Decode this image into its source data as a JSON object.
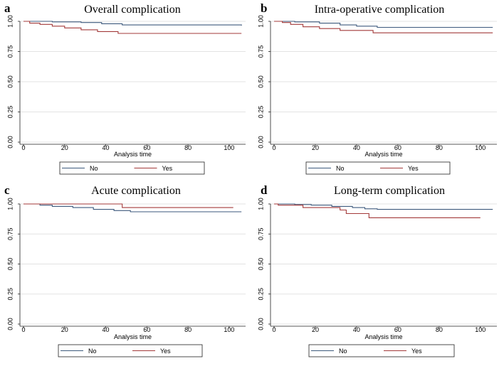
{
  "chart_data": [
    {
      "type": "line",
      "panel_label": "a",
      "title": "Overall complication",
      "xlabel": "Analysis time",
      "ylabel": "",
      "xlim": [
        0,
        108
      ],
      "ylim": [
        0,
        1
      ],
      "xticks": [
        0,
        20,
        40,
        60,
        80,
        100
      ],
      "yticks": [
        0,
        0.25,
        0.5,
        0.75,
        1
      ],
      "ytick_labels": [
        "0.00",
        "0.25",
        "0.50",
        "0.75",
        "1.00"
      ],
      "grid": true,
      "legend_position": "bottom",
      "series": [
        {
          "name": "No",
          "color": "#3e5a7d",
          "x": [
            0,
            14,
            28,
            38,
            48,
            106
          ],
          "y": [
            1.0,
            0.995,
            0.99,
            0.98,
            0.97,
            0.965
          ]
        },
        {
          "name": "Yes",
          "color": "#a33a3a",
          "x": [
            0,
            3,
            8,
            14,
            20,
            28,
            36,
            46,
            106
          ],
          "y": [
            1.0,
            0.985,
            0.975,
            0.96,
            0.945,
            0.93,
            0.915,
            0.9,
            0.9
          ]
        }
      ]
    },
    {
      "type": "line",
      "panel_label": "b",
      "title": "Intra-operative complication",
      "xlabel": "Analysis time",
      "ylabel": "",
      "xlim": [
        0,
        108
      ],
      "ylim": [
        0,
        1
      ],
      "xticks": [
        0,
        20,
        40,
        60,
        80,
        100
      ],
      "yticks": [
        0,
        0.25,
        0.5,
        0.75,
        1
      ],
      "ytick_labels": [
        "0.00",
        "0.25",
        "0.50",
        "0.75",
        "1.00"
      ],
      "grid": true,
      "legend_position": "bottom",
      "series": [
        {
          "name": "No",
          "color": "#3e5a7d",
          "x": [
            0,
            10,
            22,
            32,
            40,
            50,
            106
          ],
          "y": [
            1.0,
            0.995,
            0.985,
            0.97,
            0.96,
            0.95,
            0.95
          ]
        },
        {
          "name": "Yes",
          "color": "#a33a3a",
          "x": [
            0,
            4,
            8,
            14,
            22,
            32,
            48,
            106
          ],
          "y": [
            1.0,
            0.99,
            0.975,
            0.955,
            0.94,
            0.925,
            0.905,
            0.905
          ]
        }
      ]
    },
    {
      "type": "line",
      "panel_label": "c",
      "title": "Acute complication",
      "xlabel": "Analysis time",
      "ylabel": "",
      "xlim": [
        0,
        108
      ],
      "ylim": [
        0,
        1
      ],
      "xticks": [
        0,
        20,
        40,
        60,
        80,
        100
      ],
      "yticks": [
        0,
        0.25,
        0.5,
        0.75,
        1
      ],
      "ytick_labels": [
        "0.00",
        "0.25",
        "0.50",
        "0.75",
        "1.00"
      ],
      "grid": true,
      "legend_position": "bottom",
      "series": [
        {
          "name": "No",
          "color": "#3e5a7d",
          "x": [
            0,
            8,
            14,
            24,
            34,
            44,
            52,
            106
          ],
          "y": [
            1.0,
            0.99,
            0.98,
            0.97,
            0.955,
            0.945,
            0.935,
            0.935
          ]
        },
        {
          "name": "Yes",
          "color": "#a33a3a",
          "x": [
            0,
            48,
            102
          ],
          "y": [
            1.0,
            0.97,
            0.97
          ]
        }
      ]
    },
    {
      "type": "line",
      "panel_label": "d",
      "title": "Long-term complication",
      "xlabel": "Analysis time",
      "ylabel": "",
      "xlim": [
        0,
        108
      ],
      "ylim": [
        0,
        1
      ],
      "xticks": [
        0,
        20,
        40,
        60,
        80,
        100
      ],
      "yticks": [
        0,
        0.25,
        0.5,
        0.75,
        1
      ],
      "ytick_labels": [
        "0.00",
        "0.25",
        "0.50",
        "0.75",
        "1.00"
      ],
      "grid": true,
      "legend_position": "bottom",
      "series": [
        {
          "name": "No",
          "color": "#3e5a7d",
          "x": [
            0,
            10,
            18,
            28,
            38,
            44,
            50,
            106
          ],
          "y": [
            1.0,
            0.995,
            0.99,
            0.98,
            0.97,
            0.96,
            0.955,
            0.955
          ]
        },
        {
          "name": "Yes",
          "color": "#a33a3a",
          "x": [
            0,
            2,
            14,
            32,
            35,
            46,
            100
          ],
          "y": [
            1.0,
            0.99,
            0.97,
            0.95,
            0.92,
            0.885,
            0.885
          ]
        }
      ]
    }
  ]
}
